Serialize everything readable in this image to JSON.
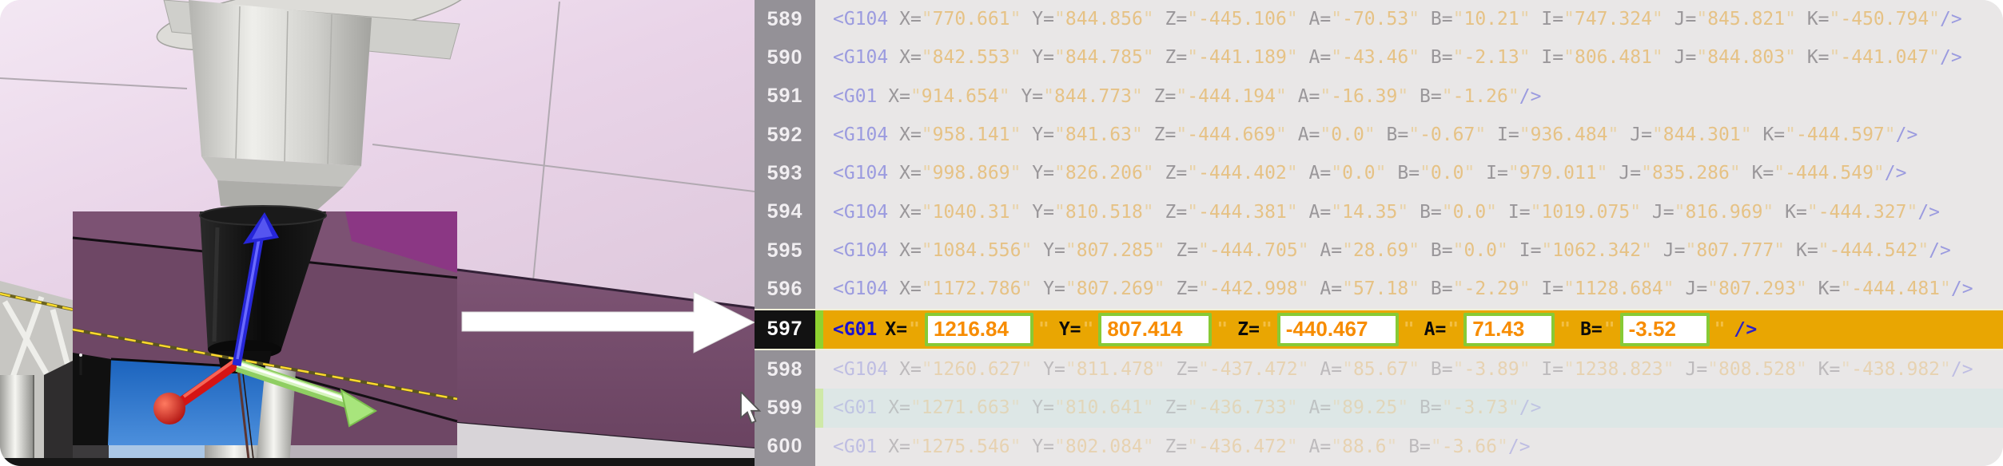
{
  "app": {
    "view_title": "toolpath-simulation-and-gcode-editor"
  },
  "scene": {
    "axis_x_color": "#d51414",
    "axis_y_color": "#8fce62",
    "axis_z_color": "#2626d8",
    "toolpath_color": "#ffd92e",
    "callout_arrow_color": "#ffffff",
    "pocket_color": "#1b63bd"
  },
  "editor": {
    "highlight_row_color": "#e9a602",
    "field_border_color": "#87ca35",
    "field_text_color": "#f78c00",
    "quote_char": "\"",
    "open_char": "<",
    "close_token": "/>",
    "lines": [
      {
        "num": "589",
        "kind": "code",
        "tag": "G104",
        "attrs": [
          [
            "X",
            "770.661"
          ],
          [
            "Y",
            "844.856"
          ],
          [
            "Z",
            "-445.106"
          ],
          [
            "A",
            "-70.53"
          ],
          [
            "B",
            "10.21"
          ],
          [
            "I",
            "747.324"
          ],
          [
            "J",
            "845.821"
          ],
          [
            "K",
            "-450.794"
          ]
        ]
      },
      {
        "num": "590",
        "kind": "code",
        "tag": "G104",
        "attrs": [
          [
            "X",
            "842.553"
          ],
          [
            "Y",
            "844.785"
          ],
          [
            "Z",
            "-441.189"
          ],
          [
            "A",
            "-43.46"
          ],
          [
            "B",
            "-2.13"
          ],
          [
            "I",
            "806.481"
          ],
          [
            "J",
            "844.803"
          ],
          [
            "K",
            "-441.047"
          ]
        ]
      },
      {
        "num": "591",
        "kind": "code",
        "tag": "G01",
        "attrs": [
          [
            "X",
            "914.654"
          ],
          [
            "Y",
            "844.773"
          ],
          [
            "Z",
            "-444.194"
          ],
          [
            "A",
            "-16.39"
          ],
          [
            "B",
            "-1.26"
          ]
        ]
      },
      {
        "num": "592",
        "kind": "code",
        "tag": "G104",
        "attrs": [
          [
            "X",
            "958.141"
          ],
          [
            "Y",
            "841.63"
          ],
          [
            "Z",
            "-444.669"
          ],
          [
            "A",
            "0.0"
          ],
          [
            "B",
            "-0.67"
          ],
          [
            "I",
            "936.484"
          ],
          [
            "J",
            "844.301"
          ],
          [
            "K",
            "-444.597"
          ]
        ]
      },
      {
        "num": "593",
        "kind": "code",
        "tag": "G104",
        "attrs": [
          [
            "X",
            "998.869"
          ],
          [
            "Y",
            "826.206"
          ],
          [
            "Z",
            "-444.402"
          ],
          [
            "A",
            "0.0"
          ],
          [
            "B",
            "0.0"
          ],
          [
            "I",
            "979.011"
          ],
          [
            "J",
            "835.286"
          ],
          [
            "K",
            "-444.549"
          ]
        ]
      },
      {
        "num": "594",
        "kind": "code",
        "tag": "G104",
        "attrs": [
          [
            "X",
            "1040.31"
          ],
          [
            "Y",
            "810.518"
          ],
          [
            "Z",
            "-444.381"
          ],
          [
            "A",
            "14.35"
          ],
          [
            "B",
            "0.0"
          ],
          [
            "I",
            "1019.075"
          ],
          [
            "J",
            "816.969"
          ],
          [
            "K",
            "-444.327"
          ]
        ]
      },
      {
        "num": "595",
        "kind": "code",
        "tag": "G104",
        "attrs": [
          [
            "X",
            "1084.556"
          ],
          [
            "Y",
            "807.285"
          ],
          [
            "Z",
            "-444.705"
          ],
          [
            "A",
            "28.69"
          ],
          [
            "B",
            "0.0"
          ],
          [
            "I",
            "1062.342"
          ],
          [
            "J",
            "807.777"
          ],
          [
            "K",
            "-444.542"
          ]
        ]
      },
      {
        "num": "596",
        "kind": "code",
        "tag": "G104",
        "attrs": [
          [
            "X",
            "1172.786"
          ],
          [
            "Y",
            "807.269"
          ],
          [
            "Z",
            "-442.998"
          ],
          [
            "A",
            "57.18"
          ],
          [
            "B",
            "-2.29"
          ],
          [
            "I",
            "1128.684"
          ],
          [
            "J",
            "807.293"
          ],
          [
            "K",
            "-444.481"
          ]
        ]
      },
      {
        "num": "597",
        "kind": "edit",
        "tag": "G01",
        "fields": [
          [
            "X",
            "1216.84"
          ],
          [
            "Y",
            "807.414"
          ],
          [
            "Z",
            "-440.467"
          ],
          [
            "A",
            "71.43"
          ],
          [
            "B",
            "-3.52"
          ]
        ]
      },
      {
        "num": "598",
        "kind": "code",
        "tag": "G104",
        "faded": 1,
        "attrs": [
          [
            "X",
            "1260.627"
          ],
          [
            "Y",
            "811.478"
          ],
          [
            "Z",
            "-437.472"
          ],
          [
            "A",
            "85.67"
          ],
          [
            "B",
            "-3.89"
          ],
          [
            "I",
            "1238.823"
          ],
          [
            "J",
            "808.528"
          ],
          [
            "K",
            "-438.982"
          ]
        ]
      },
      {
        "num": "599",
        "kind": "code",
        "tag": "G01",
        "faded": 2,
        "tint": true,
        "attrs": [
          [
            "X",
            "1271.663"
          ],
          [
            "Y",
            "810.641"
          ],
          [
            "Z",
            "-436.733"
          ],
          [
            "A",
            "89.25"
          ],
          [
            "B",
            "-3.73"
          ]
        ]
      },
      {
        "num": "600",
        "kind": "code",
        "tag": "G01",
        "faded": 1,
        "attrs": [
          [
            "X",
            "1275.546"
          ],
          [
            "Y",
            "802.084"
          ],
          [
            "Z",
            "-436.472"
          ],
          [
            "A",
            "88.6"
          ],
          [
            "B",
            "-3.66"
          ]
        ]
      }
    ]
  }
}
